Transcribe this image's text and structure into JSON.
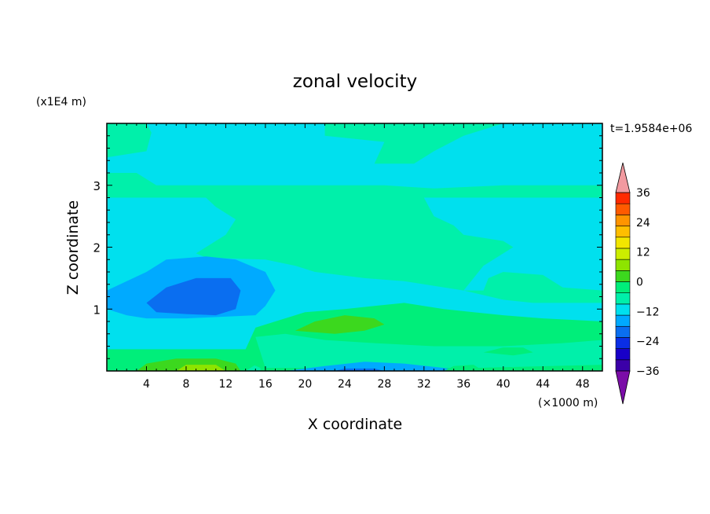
{
  "chart_data": {
    "type": "heatmap",
    "title": "zonal velocity",
    "xlabel": "X coordinate",
    "ylabel": "Z coordinate",
    "x_unit": "(×1000 m)",
    "y_unit": "(x1E4 m)",
    "time_label": "t=1.9584e+06",
    "xlim": [
      0,
      50
    ],
    "ylim": [
      0,
      4
    ],
    "x_ticks": [
      4,
      8,
      12,
      16,
      20,
      24,
      28,
      32,
      36,
      40,
      44,
      48
    ],
    "y_ticks": [
      1,
      2,
      3
    ],
    "colorbar": {
      "min": -42,
      "max": 42,
      "step": 6,
      "tick_values": [
        36,
        24,
        12,
        0,
        -12,
        -24,
        -36
      ],
      "tick_labels": [
        "36",
        "24",
        "12",
        "0",
        "−12",
        "−24",
        "−36"
      ],
      "colors": [
        "#7b0da8",
        "#3b00a8",
        "#1800c8",
        "#0a2ee6",
        "#0a6ef0",
        "#00aaff",
        "#00e0ee",
        "#00f0aa",
        "#00ee7a",
        "#3cd81e",
        "#8ee400",
        "#ccee00",
        "#f2e600",
        "#ffbe00",
        "#ff9400",
        "#ff5a00",
        "#ff2a00",
        "#f29aa0"
      ]
    },
    "regions": [
      {
        "v": 3,
        "pts": [
          [
            0,
            4
          ],
          [
            50,
            4
          ],
          [
            50,
            0
          ],
          [
            0,
            0
          ]
        ]
      },
      {
        "v": -3,
        "pts": [
          [
            4,
            4
          ],
          [
            22,
            4
          ],
          [
            22,
            3.8
          ],
          [
            28,
            3.7
          ],
          [
            27,
            3.35
          ],
          [
            31,
            3.35
          ],
          [
            33,
            3.55
          ],
          [
            36,
            3.8
          ],
          [
            40,
            4
          ],
          [
            50,
            4
          ],
          [
            50,
            3.0
          ],
          [
            46,
            3.0
          ],
          [
            40,
            3.0
          ],
          [
            33,
            2.95
          ],
          [
            28,
            3.0
          ],
          [
            24,
            3.0
          ],
          [
            18,
            3.0
          ],
          [
            12,
            3.0
          ],
          [
            10,
            3.0
          ],
          [
            5,
            3.0
          ],
          [
            3,
            3.2
          ],
          [
            0,
            3.2
          ],
          [
            0,
            3.45
          ],
          [
            4,
            3.55
          ],
          [
            4.5,
            3.85
          ]
        ]
      },
      {
        "v": -3,
        "pts": [
          [
            0,
            2.8
          ],
          [
            10,
            2.8
          ],
          [
            11,
            2.65
          ],
          [
            13,
            2.45
          ],
          [
            12,
            2.2
          ],
          [
            9,
            1.9
          ],
          [
            10.5,
            1.8
          ],
          [
            12,
            1.82
          ],
          [
            16,
            1.8
          ],
          [
            19,
            1.7
          ],
          [
            21,
            1.6
          ],
          [
            26,
            1.5
          ],
          [
            30,
            1.45
          ],
          [
            36,
            1.3
          ],
          [
            40,
            1.15
          ],
          [
            43,
            1.1
          ],
          [
            50,
            1.1
          ],
          [
            50,
            0.2
          ],
          [
            0,
            0.2
          ]
        ]
      },
      {
        "v": -3,
        "pts": [
          [
            32,
            2.8
          ],
          [
            50,
            2.8
          ],
          [
            50,
            1.3
          ],
          [
            46,
            1.35
          ],
          [
            44,
            1.55
          ],
          [
            40,
            1.6
          ],
          [
            38.5,
            1.5
          ],
          [
            38,
            1.3
          ],
          [
            36,
            1.3
          ],
          [
            38,
            1.7
          ],
          [
            41,
            2.0
          ],
          [
            40,
            2.1
          ],
          [
            36,
            2.2
          ],
          [
            35,
            2.35
          ],
          [
            33,
            2.5
          ]
        ]
      },
      {
        "v": -9,
        "pts": [
          [
            0,
            1.3
          ],
          [
            4,
            1.6
          ],
          [
            6,
            1.8
          ],
          [
            10,
            1.85
          ],
          [
            13,
            1.8
          ],
          [
            16,
            1.6
          ],
          [
            17,
            1.3
          ],
          [
            16,
            1.05
          ],
          [
            15,
            0.9
          ],
          [
            8,
            0.85
          ],
          [
            4,
            0.85
          ],
          [
            2,
            0.9
          ],
          [
            0,
            1.0
          ]
        ]
      },
      {
        "v": -15,
        "pts": [
          [
            4,
            1.1
          ],
          [
            6,
            1.35
          ],
          [
            9,
            1.5
          ],
          [
            12.5,
            1.5
          ],
          [
            13.5,
            1.3
          ],
          [
            13,
            1.0
          ],
          [
            11,
            0.9
          ],
          [
            8,
            0.92
          ],
          [
            5,
            0.95
          ]
        ]
      },
      {
        "v": 9,
        "pts": [
          [
            0,
            0.35
          ],
          [
            14,
            0.35
          ],
          [
            15,
            0.7
          ],
          [
            17,
            0.8
          ],
          [
            20,
            0.95
          ],
          [
            24,
            1.0
          ],
          [
            27,
            1.05
          ],
          [
            30,
            1.1
          ],
          [
            34,
            1.0
          ],
          [
            37,
            0.95
          ],
          [
            40,
            0.9
          ],
          [
            44,
            0.85
          ],
          [
            50,
            0.8
          ],
          [
            50,
            0
          ],
          [
            0,
            0
          ]
        ]
      },
      {
        "v": 3,
        "pts": [
          [
            15,
            0.55
          ],
          [
            18,
            0.6
          ],
          [
            22,
            0.5
          ],
          [
            27,
            0.45
          ],
          [
            33,
            0.4
          ],
          [
            40,
            0.4
          ],
          [
            46,
            0.45
          ],
          [
            50,
            0.5
          ],
          [
            50,
            0.1
          ],
          [
            37,
            0.05
          ],
          [
            16,
            0.05
          ]
        ]
      },
      {
        "v": 15,
        "pts": [
          [
            19,
            0.65
          ],
          [
            21,
            0.8
          ],
          [
            24,
            0.9
          ],
          [
            27,
            0.85
          ],
          [
            28,
            0.75
          ],
          [
            26,
            0.65
          ],
          [
            23,
            0.6
          ]
        ]
      },
      {
        "v": 3,
        "pts": [
          [
            0,
            0.15
          ],
          [
            14.5,
            0.12
          ],
          [
            15.5,
            0.05
          ],
          [
            15.5,
            0
          ],
          [
            0,
            0
          ]
        ]
      },
      {
        "v": 9,
        "pts": [
          [
            0,
            0.3
          ],
          [
            3,
            0.3
          ],
          [
            6,
            0.2
          ],
          [
            12,
            0.2
          ],
          [
            14,
            0.25
          ],
          [
            15,
            0.1
          ],
          [
            14,
            0
          ],
          [
            0,
            0
          ]
        ]
      },
      {
        "v": 15,
        "pts": [
          [
            3,
            0
          ],
          [
            4,
            0.12
          ],
          [
            7,
            0.2
          ],
          [
            11,
            0.2
          ],
          [
            13,
            0.12
          ],
          [
            13.5,
            0
          ]
        ]
      },
      {
        "v": 21,
        "pts": [
          [
            7,
            0
          ],
          [
            8,
            0.1
          ],
          [
            11,
            0.1
          ],
          [
            12,
            0
          ]
        ]
      },
      {
        "v": -9,
        "pts": [
          [
            18,
            0
          ],
          [
            22,
            0.08
          ],
          [
            26,
            0.15
          ],
          [
            30,
            0.12
          ],
          [
            34,
            0.05
          ],
          [
            36,
            0
          ]
        ]
      },
      {
        "v": -15,
        "pts": [
          [
            23,
            0
          ],
          [
            24,
            0.04
          ],
          [
            27,
            0.04
          ],
          [
            28,
            0
          ]
        ]
      },
      {
        "v": 9,
        "pts": [
          [
            34,
            0
          ],
          [
            35,
            0.08
          ],
          [
            37,
            0.1
          ],
          [
            38,
            0
          ]
        ]
      },
      {
        "v": 9,
        "pts": [
          [
            38,
            0.3
          ],
          [
            40,
            0.38
          ],
          [
            42,
            0.38
          ],
          [
            43,
            0.3
          ],
          [
            41,
            0.25
          ]
        ]
      }
    ]
  }
}
